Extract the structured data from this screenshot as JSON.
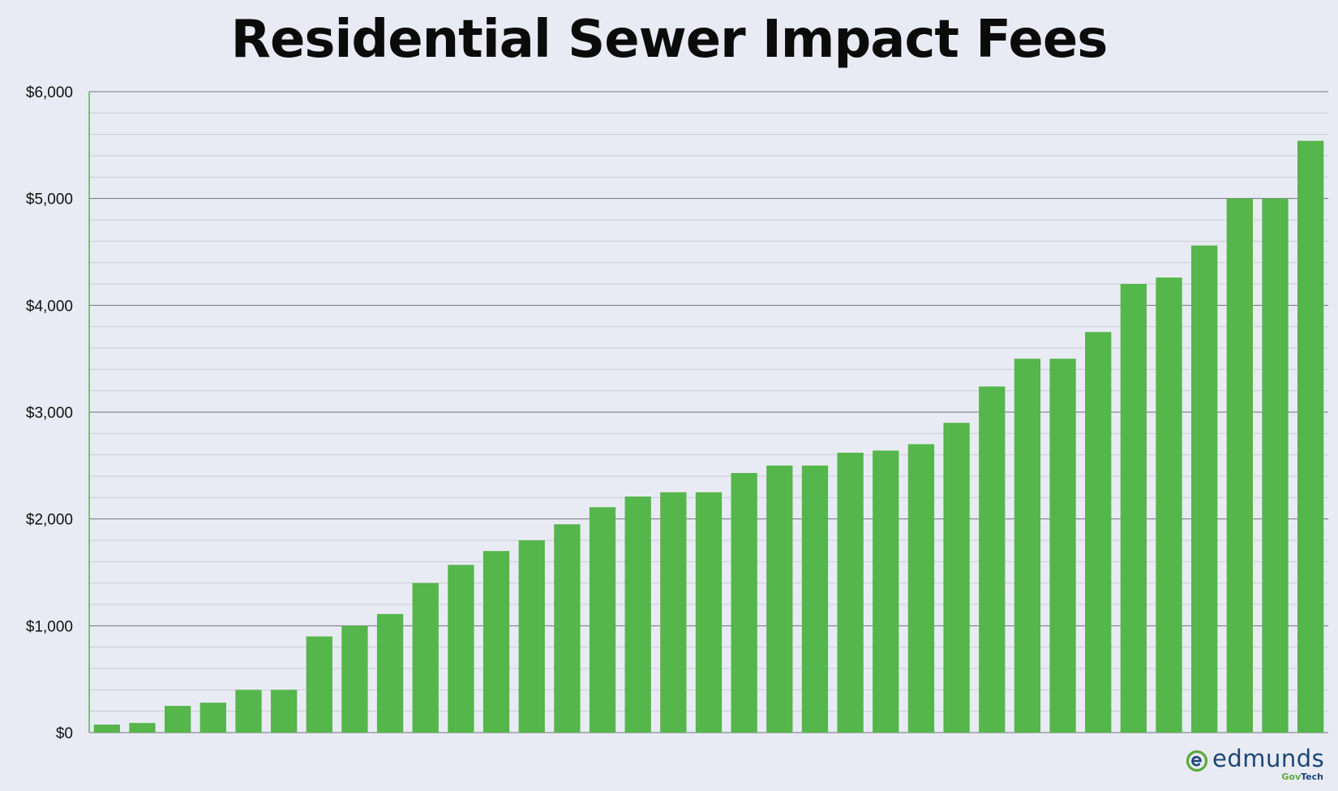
{
  "chart_data": {
    "type": "bar",
    "title": "Residential Sewer Impact Fees",
    "xlabel": "",
    "ylabel": "",
    "ylim": [
      0,
      6000
    ],
    "yticks": [
      0,
      1000,
      2000,
      3000,
      4000,
      5000,
      6000
    ],
    "ytick_labels": [
      "$0",
      "$1,000",
      "$2,000",
      "$3,000",
      "$4,000",
      "$5,000",
      "$6,000"
    ],
    "minor_grid_step": 200,
    "grid": true,
    "legend": "none",
    "bar_color": "#55b64b",
    "values": [
      75,
      90,
      250,
      280,
      400,
      400,
      900,
      1000,
      1110,
      1400,
      1570,
      1700,
      1800,
      1950,
      2110,
      2210,
      2250,
      2250,
      2430,
      2500,
      2500,
      2620,
      2640,
      2700,
      2900,
      3240,
      3500,
      3500,
      3750,
      4200,
      4260,
      4560,
      5000,
      5000,
      5540
    ]
  },
  "logo": {
    "word": "edmunds",
    "sub_gov": "Gov",
    "sub_tech": "Tech",
    "green": "#5aaa3c",
    "blue": "#1c4675"
  }
}
